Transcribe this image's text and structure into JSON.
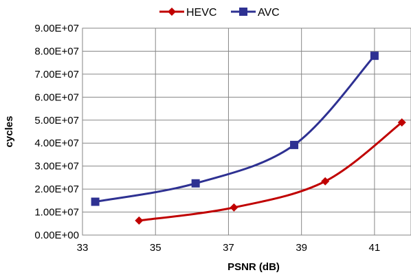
{
  "chart_data": {
    "type": "line",
    "xlabel": "PSNR (dB)",
    "ylabel": "cycles",
    "xlim": [
      33,
      42
    ],
    "ylim": [
      0,
      90000000
    ],
    "x_ticks": [
      "33",
      "35",
      "37",
      "39",
      "41"
    ],
    "y_ticks": [
      "0.00E+00",
      "1.00E+07",
      "2.00E+07",
      "3.00E+07",
      "4.00E+07",
      "5.00E+07",
      "6.00E+07",
      "7.00E+07",
      "8.00E+07",
      "9.00E+07"
    ],
    "grid": true,
    "legend_position": "top",
    "smooth": true,
    "series": [
      {
        "name": "HEVC",
        "color": "#c00000",
        "marker": "diamond",
        "points": [
          {
            "x": 34.55,
            "y": 6300000
          },
          {
            "x": 37.15,
            "y": 12000000
          },
          {
            "x": 39.65,
            "y": 23400000
          },
          {
            "x": 41.75,
            "y": 49000000
          }
        ]
      },
      {
        "name": "AVC",
        "color": "#2e3192",
        "marker": "square",
        "points": [
          {
            "x": 33.35,
            "y": 14500000
          },
          {
            "x": 36.1,
            "y": 22500000
          },
          {
            "x": 38.8,
            "y": 39200000
          },
          {
            "x": 41.0,
            "y": 78000000
          }
        ]
      }
    ]
  }
}
